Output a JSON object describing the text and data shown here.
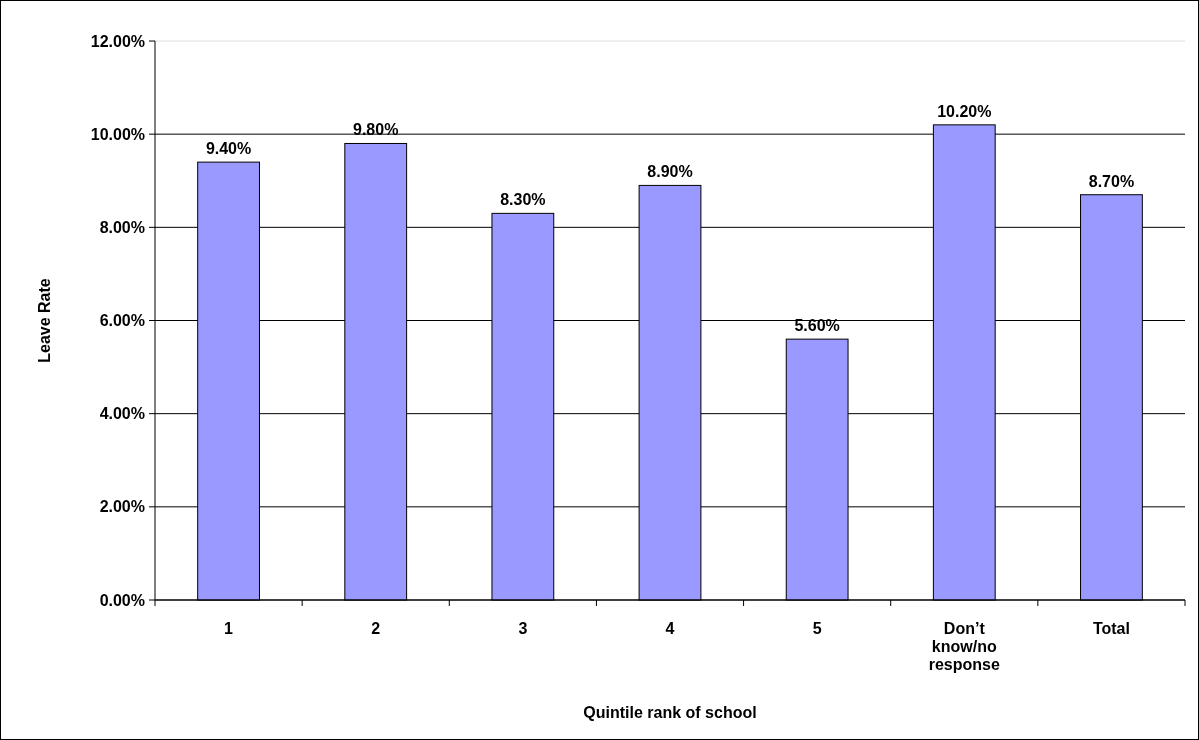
{
  "chart_data": {
    "type": "bar",
    "xlabel": "Quintile rank of school",
    "ylabel": "Leave Rate",
    "categories": [
      "1",
      "2",
      "3",
      "4",
      "5",
      "Don’t know/no response",
      "Total"
    ],
    "values": [
      9.4,
      9.8,
      8.3,
      8.9,
      5.6,
      10.2,
      8.7
    ],
    "value_labels": [
      "9.40%",
      "9.80%",
      "8.30%",
      "8.90%",
      "5.60%",
      "10.20%",
      "8.70%"
    ],
    "color": "#9999ff",
    "ylim": [
      0,
      12
    ],
    "yticks": [
      {
        "value": 0,
        "label": "0.00%"
      },
      {
        "value": 2,
        "label": "2.00%"
      },
      {
        "value": 4,
        "label": "4.00%"
      },
      {
        "value": 6,
        "label": "6.00%"
      },
      {
        "value": 8,
        "label": "8.00%"
      },
      {
        "value": 10,
        "label": "10.00%"
      },
      {
        "value": 12,
        "label": "12.00%"
      }
    ],
    "grid": "y"
  }
}
